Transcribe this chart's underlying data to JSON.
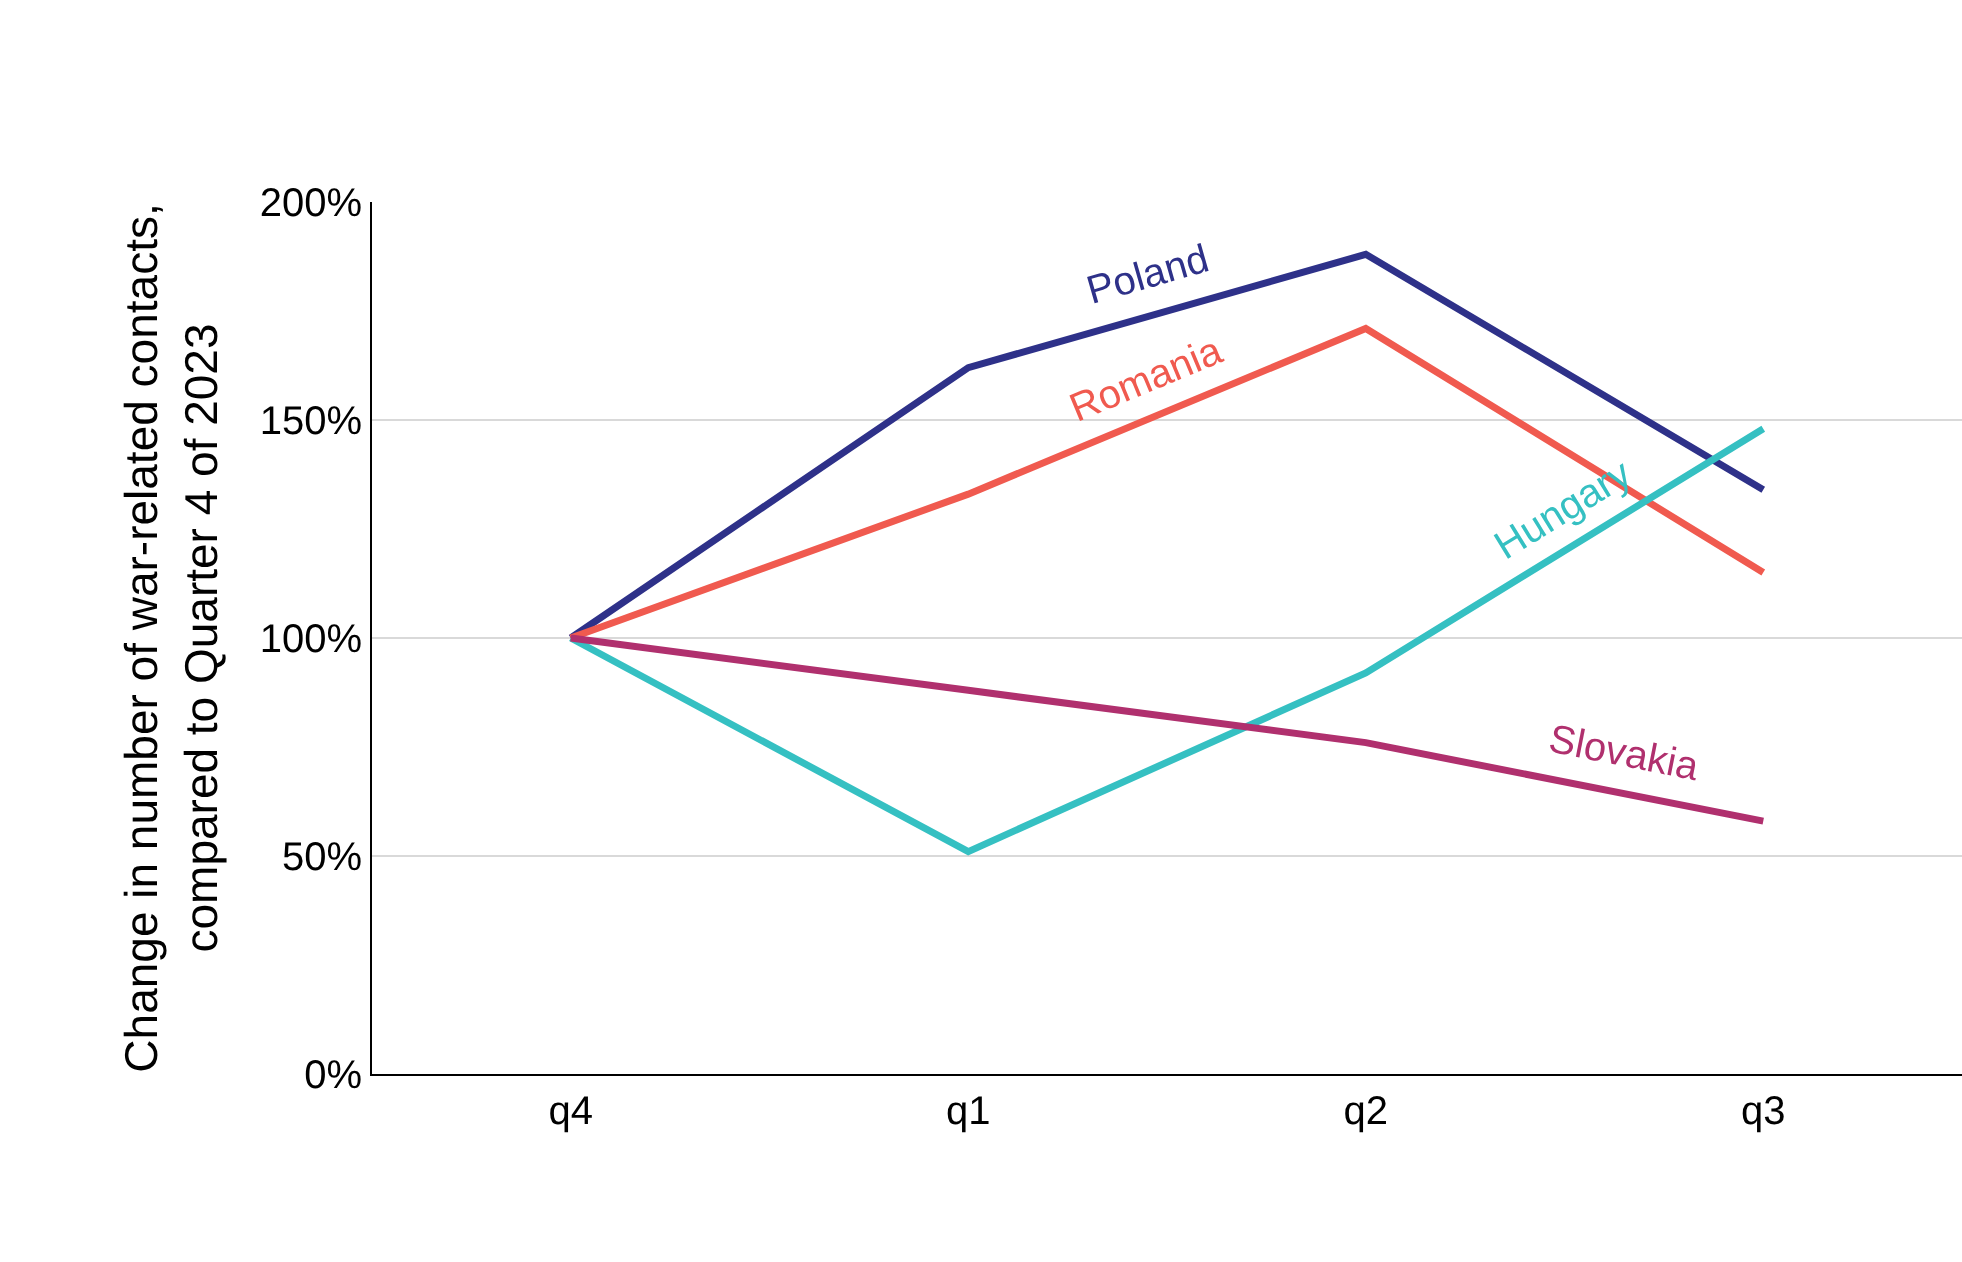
{
  "chart_data": {
    "type": "line",
    "ylabel": "Change in number of war-related contacts,\ncompared to Quarter 4 of 2023",
    "categories": [
      "q4",
      "q1",
      "q2",
      "q3"
    ],
    "series": [
      {
        "name": "Poland",
        "color": "#2e3189",
        "values": [
          100,
          162,
          188,
          134
        ]
      },
      {
        "name": "Romania",
        "color": "#f05a4f",
        "values": [
          100,
          133,
          171,
          115
        ]
      },
      {
        "name": "Hungary",
        "color": "#35c0c2",
        "values": [
          100,
          51,
          92,
          148
        ]
      },
      {
        "name": "Slovakia",
        "color": "#b0306e",
        "values": [
          100,
          88,
          76,
          58
        ]
      }
    ],
    "ylim": [
      0,
      200
    ],
    "yticks": [
      {
        "value": 0,
        "label": "0%"
      },
      {
        "value": 50,
        "label": "50%"
      },
      {
        "value": 100,
        "label": "100%"
      },
      {
        "value": 150,
        "label": "150%"
      },
      {
        "value": 200,
        "label": "200%"
      }
    ],
    "grid": "y",
    "legend": false,
    "marker": "none",
    "line_style": "solid"
  }
}
